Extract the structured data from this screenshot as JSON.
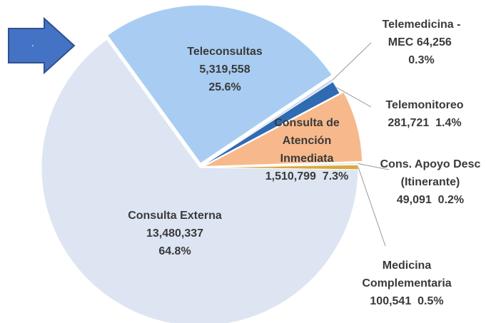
{
  "chart_data": {
    "type": "pie",
    "annotation": ".",
    "categories": [
      "Teleconsultas",
      "Telemedicina - MEC",
      "Telemonitoreo",
      "Consulta de Atención Inmediata",
      "Cons. Apoyo Desc (Itinerante)",
      "Medicina Complementaria",
      "Consulta Externa"
    ],
    "values": [
      5319558,
      64256,
      281721,
      1510799,
      49091,
      100541,
      13480337
    ],
    "value_labels": [
      "5,319,558",
      "64,256",
      "281,721",
      "1,510,799",
      "49,091",
      "100,541",
      "13,480,337"
    ],
    "percent_labels": [
      "25.6%",
      "0.3%",
      "1.4%",
      "7.3%",
      "0.2%",
      "0.5%",
      "64.8%"
    ],
    "colors": [
      "#a9cdf2",
      "#c9d9ec",
      "#2f6bb3",
      "#f7b98b",
      "#ececec",
      "#d9a93c",
      "#dde5f2"
    ]
  }
}
